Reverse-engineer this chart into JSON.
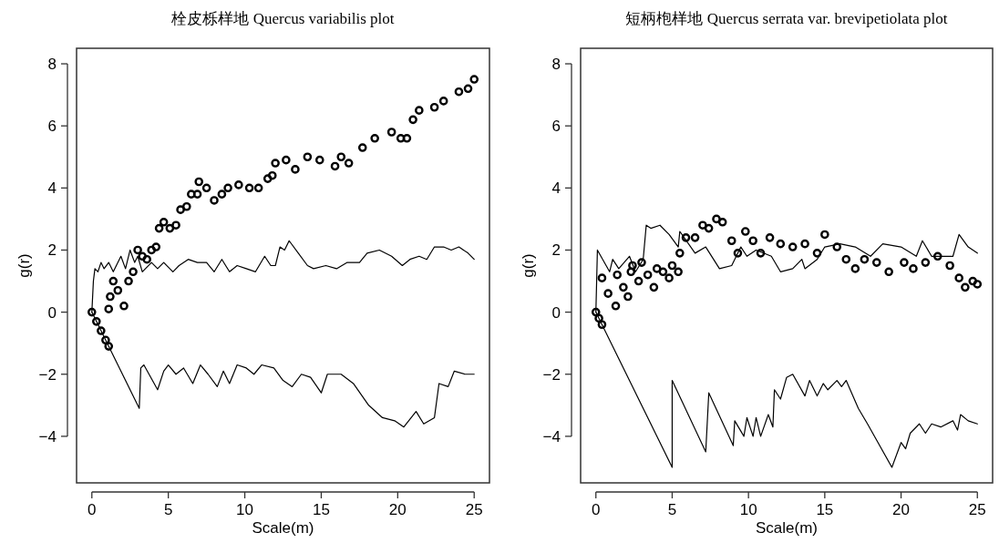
{
  "chart_data": [
    {
      "type": "line",
      "title": "栓皮栎样地 Quercus variabilis plot",
      "xlabel": "Scale(m)",
      "ylabel": "g(r)",
      "xlim": [
        -1,
        26
      ],
      "ylim": [
        -5.5,
        8.5
      ],
      "xticks": [
        0,
        5,
        10,
        15,
        20,
        25
      ],
      "yticks": [
        -4,
        -2,
        0,
        2,
        4,
        6,
        8
      ],
      "series": [
        {
          "color": "#000000",
          "x": [
            0,
            0.1,
            0.2,
            0.4,
            0.6,
            0.8,
            1.1,
            1.4,
            1.9,
            2.2,
            2.5,
            2.8,
            3.0,
            3.3,
            3.9,
            4.3,
            4.7,
            5.3,
            5.7,
            6.3,
            6.9,
            7.5,
            8.0,
            8.5,
            9.0,
            9.5,
            10.1,
            10.7,
            11.3,
            11.7,
            12.0,
            12.3,
            12.6,
            12.9,
            13.5,
            14.1,
            14.5,
            15.3,
            16.0,
            16.7,
            17.5,
            18.0,
            18.8,
            19.6,
            20.3,
            20.8,
            21.4,
            21.9,
            22.4,
            23.0,
            23.5,
            24.0,
            24.6,
            25.0
          ],
          "values": [
            0,
            1.0,
            1.4,
            1.3,
            1.6,
            1.4,
            1.6,
            1.3,
            1.8,
            1.4,
            2.0,
            1.6,
            1.8,
            1.3,
            1.6,
            1.4,
            1.6,
            1.3,
            1.5,
            1.7,
            1.6,
            1.6,
            1.3,
            1.7,
            1.3,
            1.5,
            1.4,
            1.3,
            1.8,
            1.5,
            1.5,
            2.1,
            2.0,
            2.3,
            1.9,
            1.5,
            1.4,
            1.5,
            1.4,
            1.6,
            1.6,
            1.9,
            2.0,
            1.8,
            1.5,
            1.7,
            1.8,
            1.7,
            2.1,
            2.1,
            2.0,
            2.1,
            1.9,
            1.7
          ]
        },
        {
          "color": "#000000",
          "x": [
            0,
            1.1,
            3.1,
            3.2,
            3.4,
            4.3,
            4.7,
            5.0,
            5.5,
            6.0,
            6.6,
            7.1,
            7.6,
            8.2,
            8.6,
            9.0,
            9.5,
            10.1,
            10.6,
            11.1,
            11.9,
            12.5,
            13.1,
            13.7,
            14.3,
            15.0,
            15.4,
            16.3,
            17.1,
            18.1,
            19.0,
            19.8,
            20.4,
            21.2,
            21.7,
            22.4,
            22.7,
            23.3,
            23.7,
            24.4,
            25.0
          ],
          "values": [
            0,
            -1.1,
            -3.1,
            -1.8,
            -1.7,
            -2.5,
            -1.9,
            -1.7,
            -2.0,
            -1.8,
            -2.3,
            -1.7,
            -2.0,
            -2.4,
            -1.9,
            -2.3,
            -1.7,
            -1.8,
            -2.0,
            -1.7,
            -1.8,
            -2.2,
            -2.4,
            -2.0,
            -2.1,
            -2.6,
            -2.0,
            -2.0,
            -2.3,
            -3.0,
            -3.4,
            -3.5,
            -3.7,
            -3.2,
            -3.6,
            -3.4,
            -2.3,
            -2.4,
            -1.9,
            -2.0,
            -2.0
          ]
        },
        {
          "type": "scatter",
          "marker": "circle",
          "color": "#000000",
          "x": [
            0,
            0.3,
            0.6,
            0.9,
            1.1,
            1.1,
            1.2,
            1.4,
            1.7,
            2.1,
            2.4,
            2.7,
            3.0,
            3.3,
            3.6,
            3.9,
            4.2,
            4.4,
            4.7,
            5.1,
            5.5,
            5.8,
            6.2,
            6.5,
            6.9,
            7.0,
            7.5,
            8.0,
            8.5,
            8.9,
            9.6,
            10.3,
            10.9,
            11.5,
            11.8,
            12.0,
            12.7,
            13.3,
            14.1,
            14.9,
            15.9,
            16.3,
            16.8,
            17.7,
            18.5,
            19.6,
            20.2,
            20.6,
            21.0,
            21.4,
            22.4,
            23.0,
            24.0,
            24.6,
            25.0
          ],
          "values": [
            0,
            -0.3,
            -0.6,
            -0.9,
            -1.1,
            0.1,
            0.5,
            1.0,
            0.7,
            0.2,
            1.0,
            1.3,
            2.0,
            1.8,
            1.7,
            2.0,
            2.1,
            2.7,
            2.9,
            2.7,
            2.8,
            3.3,
            3.4,
            3.8,
            3.8,
            4.2,
            4.0,
            3.6,
            3.8,
            4.0,
            4.1,
            4.0,
            4.0,
            4.3,
            4.4,
            4.8,
            4.9,
            4.6,
            5.0,
            4.9,
            4.7,
            5.0,
            4.8,
            5.3,
            5.6,
            5.8,
            5.6,
            5.6,
            6.2,
            6.5,
            6.6,
            6.8,
            7.1,
            7.2,
            7.5
          ]
        }
      ]
    },
    {
      "type": "line",
      "title": "短柄枹样地 Quercus serrata var. brevipetiolata plot",
      "xlabel": "Scale(m)",
      "ylabel": "g(r)",
      "xlim": [
        -1,
        26
      ],
      "ylim": [
        -5.5,
        8.5
      ],
      "xticks": [
        0,
        5,
        10,
        15,
        20,
        25
      ],
      "yticks": [
        -4,
        -2,
        0,
        2,
        4,
        6,
        8
      ],
      "series": [
        {
          "color": "#000000",
          "x": [
            0,
            0.1,
            0.9,
            1.1,
            1.5,
            2.2,
            2.6,
            3.1,
            3.3,
            3.6,
            4.2,
            4.8,
            5.4,
            5.5,
            6.5,
            7.2,
            8.1,
            8.9,
            9.5,
            9.9,
            10.5,
            11.5,
            12.1,
            12.9,
            13.5,
            13.7,
            14.5,
            15.0,
            16.0,
            17.0,
            18.0,
            18.8,
            20.0,
            21.0,
            21.4,
            22.0,
            22.8,
            23.4,
            23.8,
            24.4,
            25.0
          ],
          "values": [
            0,
            2.0,
            1.3,
            1.7,
            1.4,
            1.8,
            1.3,
            1.7,
            2.8,
            2.7,
            2.8,
            2.5,
            2.1,
            2.6,
            1.9,
            2.1,
            1.4,
            1.5,
            2.1,
            1.8,
            2.0,
            1.8,
            1.3,
            1.4,
            1.7,
            1.4,
            1.7,
            2.1,
            2.2,
            2.1,
            1.8,
            2.2,
            2.1,
            1.8,
            2.3,
            1.8,
            1.8,
            1.8,
            2.5,
            2.1,
            1.9
          ]
        },
        {
          "color": "#000000",
          "x": [
            0,
            0.4,
            5.0,
            5.0,
            7.2,
            7.4,
            9.0,
            9.1,
            9.7,
            9.9,
            10.3,
            10.5,
            10.8,
            11.3,
            11.6,
            11.7,
            12.1,
            12.5,
            12.9,
            13.7,
            14.0,
            14.5,
            14.9,
            15.2,
            15.8,
            16.1,
            16.4,
            17.2,
            17.8,
            19.4,
            20.0,
            20.3,
            20.6,
            21.2,
            21.6,
            22.0,
            22.6,
            23.4,
            23.7,
            23.9,
            24.4,
            25.0
          ],
          "values": [
            0,
            -0.4,
            -5.0,
            -2.2,
            -4.5,
            -2.6,
            -4.3,
            -3.5,
            -4.0,
            -3.4,
            -4.0,
            -3.4,
            -4.0,
            -3.3,
            -3.7,
            -2.5,
            -2.8,
            -2.1,
            -2.0,
            -2.7,
            -2.2,
            -2.7,
            -2.3,
            -2.5,
            -2.2,
            -2.4,
            -2.2,
            -3.1,
            -3.6,
            -5.0,
            -4.2,
            -4.4,
            -3.9,
            -3.6,
            -3.9,
            -3.6,
            -3.7,
            -3.5,
            -3.8,
            -3.3,
            -3.5,
            -3.6
          ]
        },
        {
          "type": "scatter",
          "marker": "circle",
          "color": "#000000",
          "x": [
            0,
            0.2,
            0.4,
            0.4,
            0.8,
            1.3,
            1.4,
            1.8,
            2.1,
            2.3,
            2.4,
            2.8,
            3.0,
            3.4,
            3.8,
            4.0,
            4.4,
            4.8,
            5.0,
            5.4,
            5.5,
            5.9,
            6.5,
            7.0,
            7.4,
            7.9,
            8.3,
            8.9,
            9.3,
            9.8,
            10.3,
            10.8,
            11.4,
            12.1,
            12.9,
            13.7,
            14.5,
            15.0,
            15.8,
            16.4,
            17.0,
            17.6,
            18.4,
            19.2,
            20.2,
            20.8,
            21.6,
            22.4,
            23.2,
            23.8,
            24.2,
            24.7,
            25.0
          ],
          "values": [
            0,
            -0.2,
            -0.4,
            1.1,
            0.6,
            0.2,
            1.2,
            0.8,
            0.5,
            1.3,
            1.5,
            1.0,
            1.6,
            1.2,
            0.8,
            1.4,
            1.3,
            1.1,
            1.5,
            1.3,
            1.9,
            2.4,
            2.4,
            2.8,
            2.7,
            3.0,
            2.9,
            2.3,
            1.9,
            2.6,
            2.3,
            1.9,
            2.4,
            2.2,
            2.1,
            2.2,
            1.9,
            2.5,
            2.1,
            1.7,
            1.4,
            1.7,
            1.6,
            1.3,
            1.6,
            1.4,
            1.6,
            1.8,
            1.5,
            1.1,
            0.8,
            1.0,
            0.9
          ]
        }
      ]
    }
  ]
}
